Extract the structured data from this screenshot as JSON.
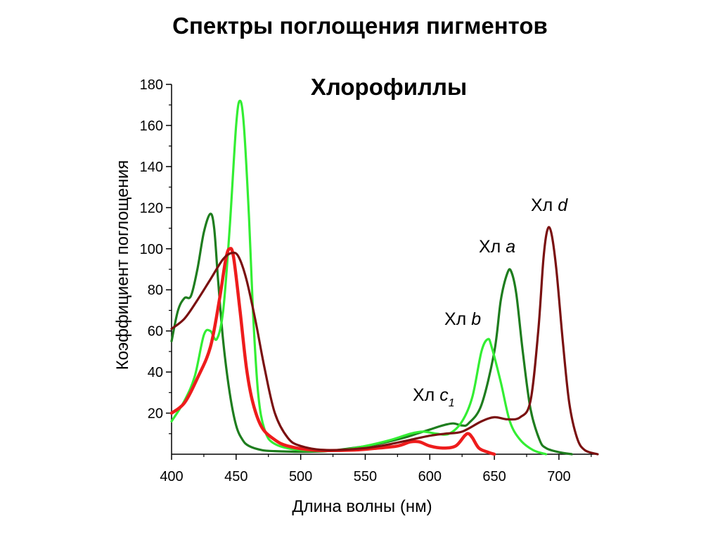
{
  "slide_title": "Спектры поглощения пигментов",
  "chart_data": {
    "type": "line",
    "title": "Хлорофиллы",
    "xlabel": "Длина волны (нм)",
    "ylabel": "Коэффициент поглощения",
    "xlim": [
      400,
      730
    ],
    "ylim": [
      0,
      180
    ],
    "x_ticks": [
      400,
      450,
      500,
      550,
      600,
      650,
      700
    ],
    "y_ticks": [
      20,
      40,
      60,
      80,
      100,
      120,
      140,
      160,
      180
    ],
    "grid": false,
    "series": [
      {
        "name": "Хл a",
        "color": "#1e7d1e",
        "points": [
          [
            400,
            55
          ],
          [
            405,
            70
          ],
          [
            410,
            76
          ],
          [
            415,
            77
          ],
          [
            420,
            90
          ],
          [
            425,
            108
          ],
          [
            430,
            117
          ],
          [
            433,
            110
          ],
          [
            436,
            85
          ],
          [
            440,
            55
          ],
          [
            445,
            30
          ],
          [
            450,
            14
          ],
          [
            455,
            7
          ],
          [
            460,
            4
          ],
          [
            470,
            2
          ],
          [
            480,
            1.5
          ],
          [
            500,
            1.2
          ],
          [
            520,
            1.5
          ],
          [
            540,
            3
          ],
          [
            560,
            5
          ],
          [
            580,
            8
          ],
          [
            590,
            10
          ],
          [
            600,
            12
          ],
          [
            610,
            14
          ],
          [
            618,
            15
          ],
          [
            625,
            14
          ],
          [
            630,
            15
          ],
          [
            640,
            24
          ],
          [
            650,
            50
          ],
          [
            655,
            75
          ],
          [
            660,
            88
          ],
          [
            663,
            89
          ],
          [
            667,
            78
          ],
          [
            672,
            50
          ],
          [
            678,
            22
          ],
          [
            685,
            7
          ],
          [
            690,
            3
          ],
          [
            700,
            1
          ],
          [
            710,
            0
          ]
        ]
      },
      {
        "name": "Хл b",
        "color": "#33ee33",
        "points": [
          [
            400,
            16
          ],
          [
            410,
            26
          ],
          [
            418,
            38
          ],
          [
            425,
            58
          ],
          [
            430,
            60
          ],
          [
            435,
            56
          ],
          [
            440,
            70
          ],
          [
            445,
            110
          ],
          [
            450,
            160
          ],
          [
            453,
            172
          ],
          [
            456,
            160
          ],
          [
            460,
            115
          ],
          [
            463,
            70
          ],
          [
            467,
            30
          ],
          [
            472,
            12
          ],
          [
            480,
            5
          ],
          [
            500,
            2
          ],
          [
            530,
            2
          ],
          [
            550,
            4
          ],
          [
            570,
            7
          ],
          [
            585,
            10
          ],
          [
            595,
            11
          ],
          [
            605,
            10
          ],
          [
            615,
            10
          ],
          [
            625,
            16
          ],
          [
            633,
            28
          ],
          [
            640,
            50
          ],
          [
            645,
            56
          ],
          [
            648,
            52
          ],
          [
            655,
            35
          ],
          [
            662,
            16
          ],
          [
            670,
            7
          ],
          [
            680,
            2
          ],
          [
            690,
            0
          ]
        ]
      },
      {
        "name": "Хл c₁",
        "color": "#ee1c1c",
        "points": [
          [
            400,
            20
          ],
          [
            410,
            25
          ],
          [
            420,
            37
          ],
          [
            430,
            52
          ],
          [
            437,
            75
          ],
          [
            442,
            95
          ],
          [
            445,
            100
          ],
          [
            448,
            96
          ],
          [
            453,
            70
          ],
          [
            458,
            42
          ],
          [
            463,
            25
          ],
          [
            470,
            13
          ],
          [
            480,
            7
          ],
          [
            490,
            4
          ],
          [
            510,
            2
          ],
          [
            540,
            2
          ],
          [
            560,
            3
          ],
          [
            575,
            4
          ],
          [
            585,
            6
          ],
          [
            592,
            6
          ],
          [
            600,
            4
          ],
          [
            610,
            3
          ],
          [
            620,
            4
          ],
          [
            627,
            9
          ],
          [
            630,
            10
          ],
          [
            633,
            8
          ],
          [
            638,
            3
          ],
          [
            645,
            1
          ],
          [
            650,
            0
          ]
        ]
      },
      {
        "name": "Хл d",
        "color": "#7a1010",
        "points": [
          [
            400,
            61
          ],
          [
            410,
            66
          ],
          [
            420,
            75
          ],
          [
            430,
            85
          ],
          [
            440,
            95
          ],
          [
            447,
            98
          ],
          [
            452,
            96
          ],
          [
            458,
            85
          ],
          [
            465,
            65
          ],
          [
            472,
            42
          ],
          [
            480,
            20
          ],
          [
            490,
            8
          ],
          [
            500,
            4
          ],
          [
            520,
            2
          ],
          [
            550,
            3
          ],
          [
            570,
            5
          ],
          [
            585,
            7
          ],
          [
            600,
            9
          ],
          [
            612,
            10
          ],
          [
            625,
            11
          ],
          [
            640,
            16
          ],
          [
            650,
            18
          ],
          [
            660,
            17
          ],
          [
            670,
            18
          ],
          [
            678,
            26
          ],
          [
            684,
            60
          ],
          [
            688,
            95
          ],
          [
            691,
            109
          ],
          [
            694,
            108
          ],
          [
            698,
            90
          ],
          [
            703,
            55
          ],
          [
            708,
            25
          ],
          [
            714,
            8
          ],
          [
            720,
            2
          ],
          [
            730,
            0
          ]
        ]
      }
    ],
    "annotations": [
      {
        "prefix": "Хл ",
        "var": "a",
        "sub": ""
      },
      {
        "prefix": "Хл ",
        "var": "b",
        "sub": ""
      },
      {
        "prefix": "Хл ",
        "var": "c",
        "sub": "1"
      },
      {
        "prefix": "Хл ",
        "var": "d",
        "sub": ""
      }
    ]
  }
}
